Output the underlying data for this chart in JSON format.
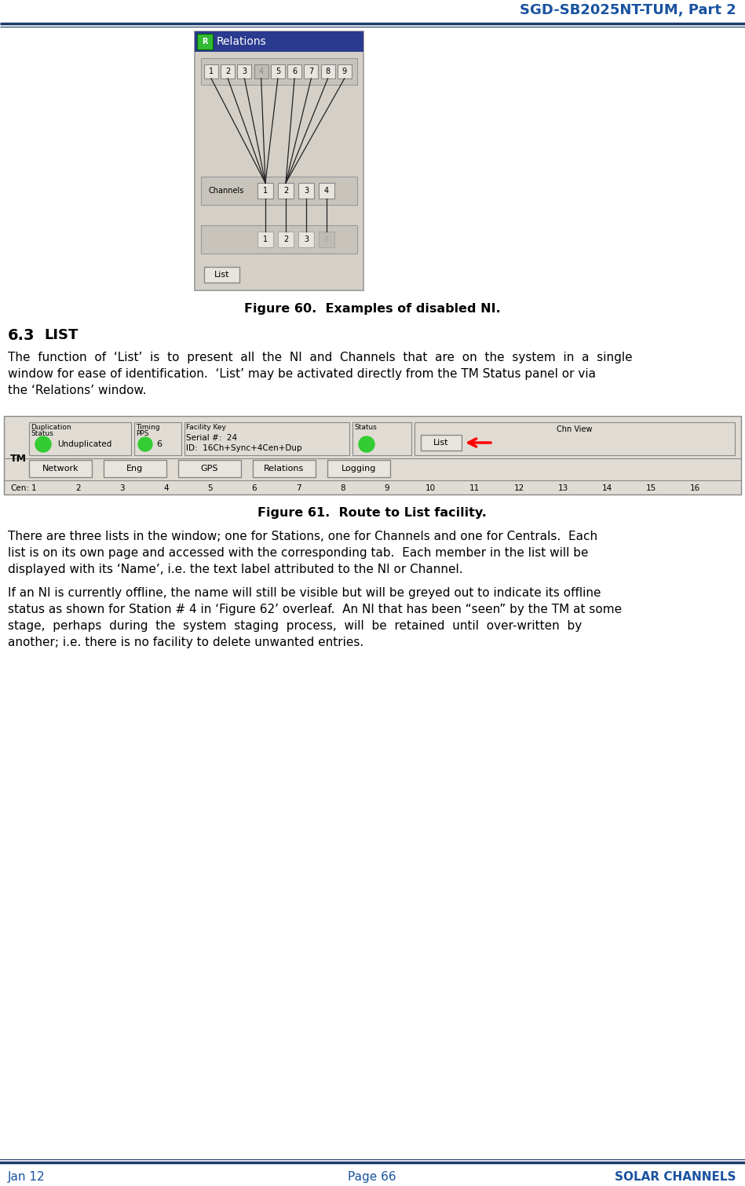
{
  "title_header": "SGD-SB2025NT-TUM, Part 2",
  "header_color": "#1a52a0",
  "footer_left": "Jan 12",
  "footer_center": "Page 66",
  "footer_right": "SOLAR CHANNELS",
  "fig60_caption": "Figure 60.  Examples of disabled NI.",
  "section_heading_num": "6.3",
  "section_heading_word": "LIST",
  "fig61_caption": "Figure 61.  Route to List facility.",
  "bg_color": "#ffffff",
  "line_color": "#1a3a6b",
  "text_color": "#000000",
  "window_bg": "#d4d0c8",
  "window_title_bg": "#2a3a8f",
  "button_bg": "#e8e4de",
  "button_border": "#888888"
}
